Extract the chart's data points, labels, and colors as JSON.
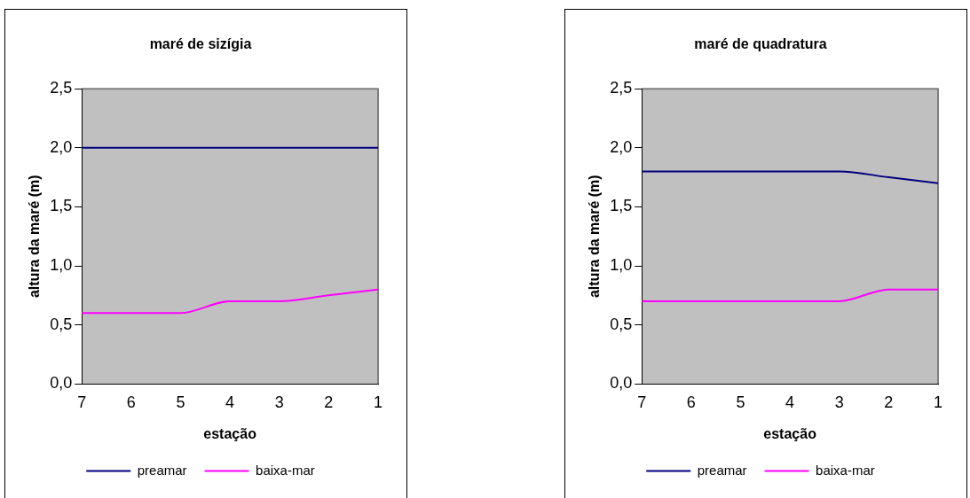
{
  "chart_data": [
    {
      "type": "line",
      "title": "maré de sizígia",
      "xlabel": "estação",
      "ylabel": "altura da maré (m)",
      "categories": [
        "7",
        "6",
        "5",
        "4",
        "3",
        "2",
        "1"
      ],
      "series": [
        {
          "name": "preamar",
          "color": "#000080",
          "values": [
            2.0,
            2.0,
            2.0,
            2.0,
            2.0,
            2.0,
            2.0
          ]
        },
        {
          "name": "baixa-mar",
          "color": "#ff00ff",
          "values": [
            0.6,
            0.6,
            0.6,
            0.7,
            0.7,
            0.75,
            0.8
          ]
        }
      ],
      "ylim": [
        0,
        2.5
      ],
      "yticks": [
        {
          "value": 0,
          "label": "0,0"
        },
        {
          "value": 0.5,
          "label": "0,5"
        },
        {
          "value": 1,
          "label": "1,0"
        },
        {
          "value": 1.5,
          "label": "1,5"
        },
        {
          "value": 2,
          "label": "2,0"
        },
        {
          "value": 2.5,
          "label": "2,5"
        }
      ],
      "grid": false,
      "legend": "bottom",
      "marker": "none",
      "line_style": "solid"
    },
    {
      "type": "line",
      "title": "maré de quadratura",
      "xlabel": "estação",
      "ylabel": "altura da maré (m)",
      "categories": [
        "7",
        "6",
        "5",
        "4",
        "3",
        "2",
        "1"
      ],
      "series": [
        {
          "name": "preamar",
          "color": "#000080",
          "values": [
            1.8,
            1.8,
            1.8,
            1.8,
            1.8,
            1.75,
            1.7
          ]
        },
        {
          "name": "baixa-mar",
          "color": "#ff00ff",
          "values": [
            0.7,
            0.7,
            0.7,
            0.7,
            0.7,
            0.8,
            0.8
          ]
        }
      ],
      "ylim": [
        0,
        2.5
      ],
      "yticks": [
        {
          "value": 0,
          "label": "0,0"
        },
        {
          "value": 0.5,
          "label": "0,5"
        },
        {
          "value": 1,
          "label": "1,0"
        },
        {
          "value": 1.5,
          "label": "1,5"
        },
        {
          "value": 2,
          "label": "2,0"
        },
        {
          "value": 2.5,
          "label": "2,5"
        }
      ],
      "grid": false,
      "legend": "bottom",
      "marker": "none",
      "line_style": "solid"
    }
  ]
}
